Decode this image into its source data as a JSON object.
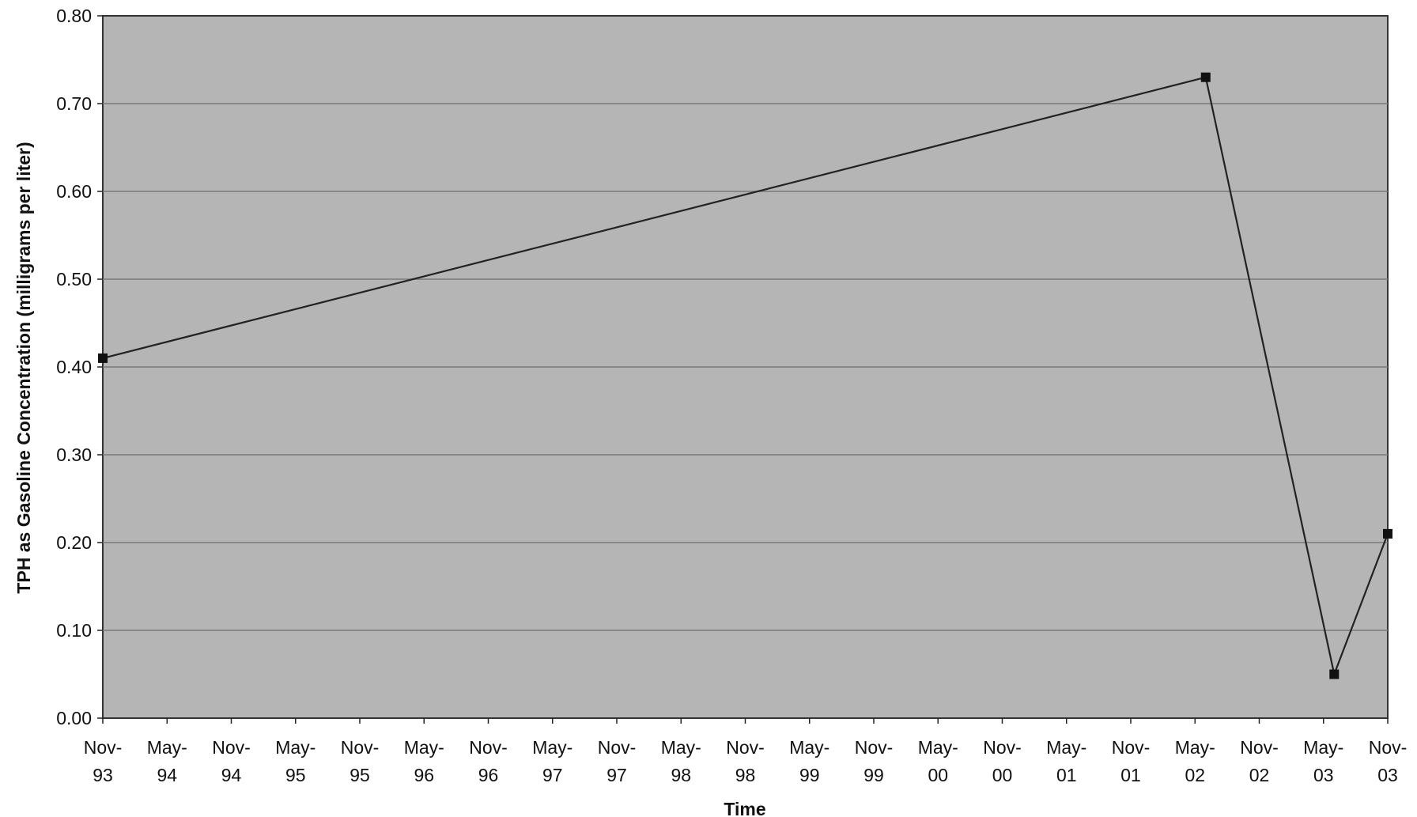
{
  "chart_data": {
    "type": "line",
    "title": "",
    "xlabel": "Time",
    "ylabel": "TPH as Gasoline Concentration (milligrams per liter)",
    "ylim": [
      0,
      0.8
    ],
    "y_ticks": [
      "0.00",
      "0.10",
      "0.20",
      "0.30",
      "0.40",
      "0.50",
      "0.60",
      "0.70",
      "0.80"
    ],
    "x_ticks": [
      [
        "Nov-",
        "93"
      ],
      [
        "May-",
        "94"
      ],
      [
        "Nov-",
        "94"
      ],
      [
        "May-",
        "95"
      ],
      [
        "Nov-",
        "95"
      ],
      [
        "May-",
        "96"
      ],
      [
        "Nov-",
        "96"
      ],
      [
        "May-",
        "97"
      ],
      [
        "Nov-",
        "97"
      ],
      [
        "May-",
        "98"
      ],
      [
        "Nov-",
        "98"
      ],
      [
        "May-",
        "99"
      ],
      [
        "Nov-",
        "99"
      ],
      [
        "May-",
        "00"
      ],
      [
        "Nov-",
        "00"
      ],
      [
        "May-",
        "01"
      ],
      [
        "Nov-",
        "01"
      ],
      [
        "May-",
        "02"
      ],
      [
        "Nov-",
        "02"
      ],
      [
        "May-",
        "03"
      ],
      [
        "Nov-",
        "03"
      ]
    ],
    "x_range": [
      "Nov-93",
      "Nov-03"
    ],
    "grid": "horizontal",
    "legend": "none",
    "series": [
      {
        "x": [
          "Nov-93",
          "Jun-02",
          "Jun-03",
          "Nov-03"
        ],
        "values": [
          0.41,
          0.73,
          0.05,
          0.21
        ]
      }
    ],
    "colors": {
      "plot_bg": "#b5b5b5",
      "line": "#222222",
      "marker": "#111111",
      "grid": "#7a7a7a"
    }
  }
}
